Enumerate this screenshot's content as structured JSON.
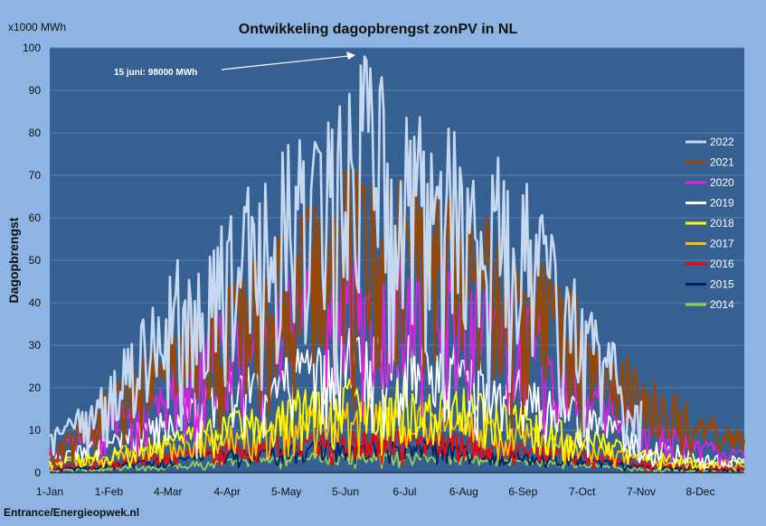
{
  "chart_data": {
    "type": "line",
    "title": "Ontwikkeling dagopbrengst zonPV in NL",
    "unit_label": "x1000 MWh",
    "ylabel": "Dagopbrengst",
    "ylim": [
      0,
      100
    ],
    "yticks": [
      0,
      10,
      20,
      30,
      40,
      50,
      60,
      70,
      80,
      90,
      100
    ],
    "x_tick_labels": [
      "1-Jan",
      "1-Feb",
      "4-Mar",
      "4-Apr",
      "5-May",
      "5-Jun",
      "6-Jul",
      "6-Aug",
      "6-Sep",
      "7-Oct",
      "7-Nov",
      "8-Dec"
    ],
    "x_tick_days": [
      1,
      32,
      63,
      94,
      125,
      156,
      187,
      218,
      249,
      280,
      311,
      342
    ],
    "grid": true,
    "legend_position": "right",
    "annotation": {
      "text": "15 juni: 98000 MWh",
      "day": 166,
      "value": 98
    },
    "source": "Entrance/Energieopwek.nl",
    "series": [
      {
        "name": "2022",
        "color": "#c6d9f0",
        "envelope": [
          [
            1,
            9
          ],
          [
            32,
            22
          ],
          [
            63,
            50
          ],
          [
            94,
            62
          ],
          [
            125,
            78
          ],
          [
            156,
            88
          ],
          [
            166,
            98
          ],
          [
            187,
            88
          ],
          [
            218,
            82
          ],
          [
            249,
            70
          ],
          [
            280,
            42
          ],
          [
            300,
            28
          ],
          [
            311,
            18
          ]
        ]
      },
      {
        "name": "2021",
        "color": "#974806",
        "envelope": [
          [
            1,
            5
          ],
          [
            32,
            20
          ],
          [
            63,
            36
          ],
          [
            94,
            44
          ],
          [
            125,
            58
          ],
          [
            156,
            72
          ],
          [
            187,
            70
          ],
          [
            218,
            66
          ],
          [
            249,
            55
          ],
          [
            280,
            40
          ],
          [
            311,
            24
          ],
          [
            342,
            15
          ],
          [
            365,
            10
          ]
        ]
      },
      {
        "name": "2020",
        "color": "#e020e0",
        "envelope": [
          [
            1,
            6
          ],
          [
            32,
            14
          ],
          [
            63,
            24
          ],
          [
            94,
            42
          ],
          [
            125,
            48
          ],
          [
            156,
            54
          ],
          [
            187,
            52
          ],
          [
            218,
            50
          ],
          [
            249,
            42
          ],
          [
            280,
            30
          ],
          [
            311,
            14
          ],
          [
            342,
            8
          ],
          [
            365,
            6
          ]
        ]
      },
      {
        "name": "2019",
        "color": "#ffffff",
        "envelope": [
          [
            1,
            4
          ],
          [
            32,
            9
          ],
          [
            63,
            15
          ],
          [
            94,
            24
          ],
          [
            125,
            30
          ],
          [
            156,
            34
          ],
          [
            187,
            34
          ],
          [
            218,
            30
          ],
          [
            249,
            24
          ],
          [
            280,
            18
          ],
          [
            311,
            9
          ],
          [
            342,
            5
          ],
          [
            365,
            4
          ]
        ]
      },
      {
        "name": "2018",
        "color": "#ffff00",
        "envelope": [
          [
            1,
            3
          ],
          [
            32,
            6
          ],
          [
            63,
            10
          ],
          [
            94,
            14
          ],
          [
            125,
            19
          ],
          [
            156,
            22
          ],
          [
            187,
            22
          ],
          [
            218,
            20
          ],
          [
            249,
            16
          ],
          [
            280,
            11
          ],
          [
            311,
            6
          ],
          [
            342,
            3
          ],
          [
            365,
            3
          ]
        ]
      },
      {
        "name": "2017",
        "color": "#ffc000",
        "envelope": [
          [
            1,
            2.5
          ],
          [
            32,
            5
          ],
          [
            63,
            8
          ],
          [
            94,
            11
          ],
          [
            125,
            15
          ],
          [
            156,
            17
          ],
          [
            187,
            17
          ],
          [
            218,
            15
          ],
          [
            249,
            12
          ],
          [
            280,
            8
          ],
          [
            311,
            4.5
          ],
          [
            342,
            2.5
          ],
          [
            365,
            2.5
          ]
        ]
      },
      {
        "name": "2016",
        "color": "#ff0000",
        "envelope": [
          [
            1,
            1.5
          ],
          [
            32,
            3
          ],
          [
            63,
            5
          ],
          [
            94,
            7
          ],
          [
            125,
            9
          ],
          [
            156,
            10
          ],
          [
            187,
            10
          ],
          [
            218,
            9
          ],
          [
            249,
            7
          ],
          [
            280,
            5
          ],
          [
            311,
            3
          ],
          [
            342,
            1.5
          ],
          [
            365,
            1.5
          ]
        ]
      },
      {
        "name": "2015",
        "color": "#002060",
        "envelope": [
          [
            1,
            1
          ],
          [
            32,
            2
          ],
          [
            63,
            4
          ],
          [
            94,
            5.5
          ],
          [
            125,
            7
          ],
          [
            156,
            8
          ],
          [
            187,
            8
          ],
          [
            218,
            7
          ],
          [
            249,
            5.5
          ],
          [
            280,
            4
          ],
          [
            311,
            2
          ],
          [
            342,
            1
          ],
          [
            365,
            1
          ]
        ]
      },
      {
        "name": "2014",
        "color": "#92d050",
        "envelope": [
          [
            1,
            0.6
          ],
          [
            32,
            1.2
          ],
          [
            63,
            2.2
          ],
          [
            94,
            3.2
          ],
          [
            125,
            4.5
          ],
          [
            156,
            5
          ],
          [
            187,
            5
          ],
          [
            218,
            4.5
          ],
          [
            249,
            3.5
          ],
          [
            280,
            2.4
          ],
          [
            311,
            1.2
          ],
          [
            342,
            0.6
          ],
          [
            365,
            0.6
          ]
        ]
      }
    ]
  }
}
